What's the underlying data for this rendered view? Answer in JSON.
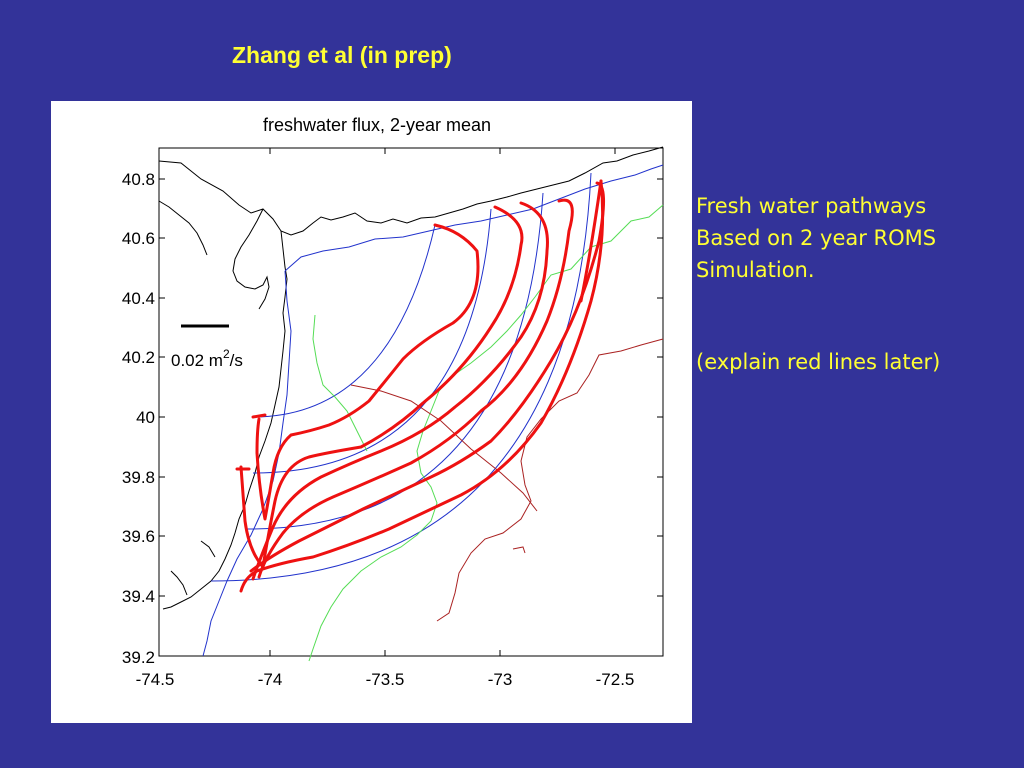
{
  "slide": {
    "title": "Zhang et al (in prep)",
    "background_color": "#333399",
    "text_color": "#ffff33"
  },
  "figure": {
    "title": "freshwater flux, 2-year mean",
    "x_ticks": [
      "-74.5",
      "-74",
      "-73.5",
      "-73",
      "-72.5"
    ],
    "y_ticks": [
      "40.8",
      "40.6",
      "40.4",
      "40.2",
      "40",
      "39.8",
      "39.6",
      "39.4",
      "39.2"
    ],
    "scale_bar": {
      "value": "0.02 m",
      "exponent": "2",
      "unit": "/s"
    },
    "colors": {
      "coastline": "#000000",
      "pathways": "#ee1111",
      "blue_contours": "#2233cc",
      "green_contour": "#55dd55",
      "brown_contour": "#aa2222"
    }
  },
  "notes": {
    "line1": "Fresh water  pathways",
    "line2": "Based on 2 year ROMS",
    "line3": "Simulation.",
    "line4": "(explain red lines later)"
  }
}
